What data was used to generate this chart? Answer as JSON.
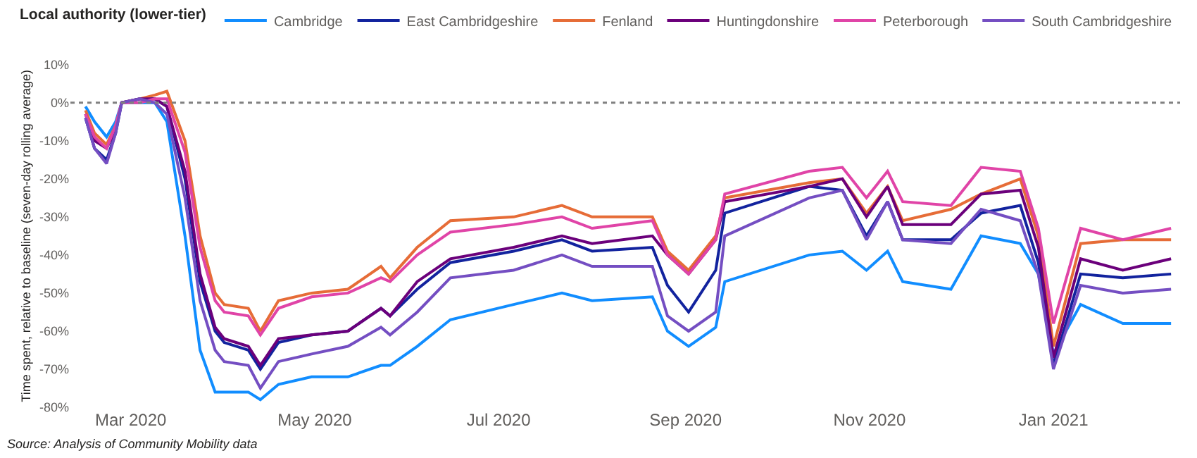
{
  "chart_data": {
    "type": "line",
    "legend_title": "Local authority (lower-tier)",
    "ylabel": "Time spent, relative to baseline (seven-day rolling average)",
    "annotations": [
      "Source: Analysis of Community Mobility data"
    ],
    "x": [
      "2020-02-15",
      "2020-02-18",
      "2020-02-22",
      "2020-02-25",
      "2020-02-27",
      "2020-03-04",
      "2020-03-09",
      "2020-03-13",
      "2020-03-19",
      "2020-03-24",
      "2020-03-29",
      "2020-04-01",
      "2020-04-09",
      "2020-04-13",
      "2020-04-19",
      "2020-04-30",
      "2020-05-12",
      "2020-05-23",
      "2020-05-26",
      "2020-06-04",
      "2020-06-15",
      "2020-07-06",
      "2020-07-22",
      "2020-08-01",
      "2020-08-21",
      "2020-08-26",
      "2020-09-02",
      "2020-09-11",
      "2020-09-14",
      "2020-10-12",
      "2020-10-23",
      "2020-10-31",
      "2020-11-07",
      "2020-11-12",
      "2020-11-28",
      "2020-12-08",
      "2020-12-21",
      "2020-12-27",
      "2021-01-01",
      "2021-01-10",
      "2021-01-24",
      "2021-02-09"
    ],
    "series": [
      {
        "name": "Cambridge",
        "color": "#118dff",
        "values": [
          -1,
          -5,
          -9,
          -5,
          0,
          0,
          0,
          -5,
          -35,
          -65,
          -76,
          -76,
          -76,
          -78,
          -74,
          -72,
          -72,
          -69,
          -69,
          -64,
          -57,
          -53,
          -50,
          -52,
          -51,
          -60,
          -64,
          -59,
          -47,
          -40,
          -39,
          -44,
          -39,
          -47,
          -49,
          -35,
          -37,
          -45,
          -66,
          -53,
          -58,
          -58
        ]
      },
      {
        "name": "East Cambridgeshire",
        "color": "#12239e",
        "values": [
          -4,
          -12,
          -15,
          -8,
          0,
          1,
          1,
          -1,
          -20,
          -47,
          -60,
          -63,
          -65,
          -70,
          -63,
          -61,
          -60,
          -54,
          -56,
          -49,
          -42,
          -39,
          -36,
          -39,
          -38,
          -48,
          -55,
          -44,
          -29,
          -22,
          -23,
          -35,
          -26,
          -36,
          -36,
          -29,
          -27,
          -42,
          -69,
          -45,
          -46,
          -45
        ]
      },
      {
        "name": "Fenland",
        "color": "#e66c37",
        "values": [
          -2,
          -8,
          -11,
          -6,
          0,
          1,
          2,
          3,
          -10,
          -35,
          -50,
          -53,
          -54,
          -60,
          -52,
          -50,
          -49,
          -43,
          -46,
          -38,
          -31,
          -30,
          -27,
          -30,
          -30,
          -39,
          -44,
          -35,
          -25,
          -21,
          -20,
          -29,
          -22,
          -31,
          -28,
          -24,
          -20,
          -35,
          -64,
          -37,
          -36,
          -36
        ]
      },
      {
        "name": "Huntingdonshire",
        "color": "#6b007b",
        "values": [
          -3,
          -10,
          -12,
          -7,
          0,
          1,
          1,
          -1,
          -18,
          -45,
          -59,
          -62,
          -64,
          -69,
          -62,
          -61,
          -60,
          -54,
          -56,
          -47,
          -41,
          -38,
          -35,
          -37,
          -35,
          -40,
          -45,
          -36,
          -26,
          -22,
          -20,
          -30,
          -22,
          -32,
          -32,
          -24,
          -23,
          -38,
          -67,
          -41,
          -44,
          -41
        ]
      },
      {
        "name": "Peterborough",
        "color": "#e044a7",
        "values": [
          -3,
          -9,
          -12,
          -6,
          0,
          0,
          1,
          1,
          -13,
          -38,
          -52,
          -55,
          -56,
          -61,
          -54,
          -51,
          -50,
          -46,
          -47,
          -40,
          -34,
          -32,
          -30,
          -33,
          -31,
          -40,
          -45,
          -36,
          -24,
          -18,
          -17,
          -25,
          -18,
          -26,
          -27,
          -17,
          -18,
          -33,
          -58,
          -33,
          -36,
          -33
        ]
      },
      {
        "name": "South Cambridgeshire",
        "color": "#744ec2",
        "values": [
          -4,
          -12,
          -16,
          -8,
          0,
          1,
          0,
          -3,
          -25,
          -52,
          -65,
          -68,
          -69,
          -75,
          -68,
          -66,
          -64,
          -59,
          -61,
          -55,
          -46,
          -44,
          -40,
          -43,
          -43,
          -56,
          -60,
          -55,
          -35,
          -25,
          -23,
          -36,
          -26,
          -36,
          -37,
          -28,
          -31,
          -45,
          -70,
          -48,
          -50,
          -49
        ]
      }
    ],
    "xlim": [
      "2020-02-10",
      "2021-02-12"
    ],
    "xticks": [
      {
        "value": "2020-03-01",
        "label": "Mar 2020"
      },
      {
        "value": "2020-05-01",
        "label": "May 2020"
      },
      {
        "value": "2020-07-01",
        "label": "Jul 2020"
      },
      {
        "value": "2020-09-01",
        "label": "Sep 2020"
      },
      {
        "value": "2020-11-01",
        "label": "Nov 2020"
      },
      {
        "value": "2021-01-01",
        "label": "Jan 2021"
      }
    ],
    "ylim": [
      -80,
      10
    ],
    "yticks": [
      {
        "value": 10,
        "label": "10%"
      },
      {
        "value": 0,
        "label": "0%"
      },
      {
        "value": -10,
        "label": "-10%"
      },
      {
        "value": -20,
        "label": "-20%"
      },
      {
        "value": -30,
        "label": "-30%"
      },
      {
        "value": -40,
        "label": "-40%"
      },
      {
        "value": -50,
        "label": "-50%"
      },
      {
        "value": -60,
        "label": "-60%"
      },
      {
        "value": -70,
        "label": "-70%"
      },
      {
        "value": -80,
        "label": "-80%"
      }
    ],
    "ref_lines": [
      {
        "axis": "y",
        "value": 0,
        "color": "#808080",
        "line_style": "dotted"
      }
    ],
    "legend": "top",
    "marker": "none",
    "line_style": "solid"
  }
}
